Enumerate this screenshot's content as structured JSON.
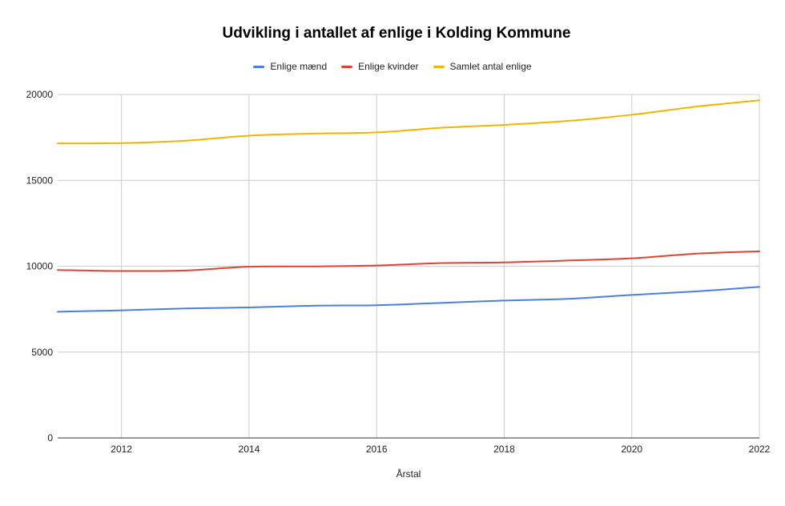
{
  "chart_data": {
    "type": "line",
    "title": "Udvikling i antallet af enlige i Kolding Kommune",
    "xlabel": "Årstal",
    "ylabel": "",
    "x": [
      2011,
      2012,
      2013,
      2014,
      2015,
      2016,
      2017,
      2018,
      2019,
      2020,
      2021,
      2022
    ],
    "xlim": [
      2011,
      2022
    ],
    "xticks": [
      "2012",
      "2014",
      "2016",
      "2018",
      "2020",
      "2022"
    ],
    "ylim": [
      0,
      20000
    ],
    "yticks": [
      "0",
      "5000",
      "10000",
      "15000",
      "20000"
    ],
    "grid": true,
    "legend_position": "top",
    "series": [
      {
        "name": "Enlige mænd",
        "color": "#4a7fe0",
        "values": [
          7350,
          7430,
          7540,
          7600,
          7700,
          7730,
          7860,
          8000,
          8100,
          8330,
          8530,
          8800
        ]
      },
      {
        "name": "Enlige kvinder",
        "color": "#df4433",
        "values": [
          9780,
          9720,
          9750,
          9970,
          9990,
          10040,
          10180,
          10220,
          10330,
          10460,
          10730,
          10870
        ]
      },
      {
        "name": "Samlet antal enlige",
        "color": "#f4b400",
        "values": [
          17150,
          17170,
          17310,
          17600,
          17720,
          17790,
          18060,
          18230,
          18460,
          18820,
          19290,
          19660
        ]
      }
    ]
  }
}
